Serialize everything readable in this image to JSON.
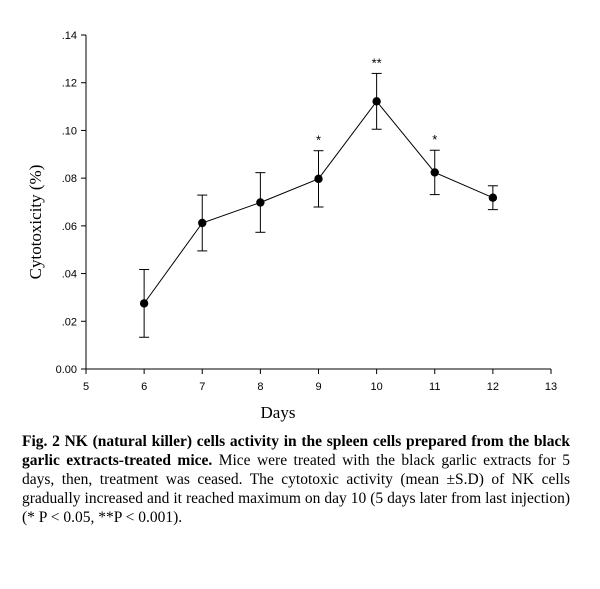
{
  "chart_data": {
    "type": "line",
    "xlabel": "Days",
    "ylabel": "Cytotoxicity (%)",
    "xlim": [
      5,
      13
    ],
    "ylim": [
      0,
      0.14
    ],
    "x_ticks": [
      "5",
      "6",
      "7",
      "8",
      "9",
      "10",
      "11",
      "12",
      "13"
    ],
    "y_ticks": [
      "0.00",
      ".02",
      ".04",
      ".06",
      ".08",
      ".10",
      ".12",
      ".14"
    ],
    "series": [
      {
        "name": "NK cell activity",
        "x": [
          6,
          7,
          8,
          9,
          10,
          11,
          12
        ],
        "y": [
          0.0275,
          0.0612,
          0.0698,
          0.0797,
          0.1122,
          0.0824,
          0.0718
        ],
        "error": [
          0.0142,
          0.0117,
          0.0125,
          0.0118,
          0.0117,
          0.0093,
          0.005
        ],
        "annotations": [
          "",
          "",
          "",
          "*",
          "**",
          "*",
          ""
        ]
      }
    ]
  },
  "caption": {
    "bold": "Fig. 2 NK (natural killer) cells activity in the spleen cells prepared from the black garlic extracts-treated mice.",
    "body": " Mice were treated with the black garlic extracts for 5 days, then, treatment was ceased. The cytotoxic activity (mean ±S.D) of NK cells gradually increased and it reached maximum on day 10 (5 days later from last injection) (* P < 0.05, **P < 0.001)."
  }
}
